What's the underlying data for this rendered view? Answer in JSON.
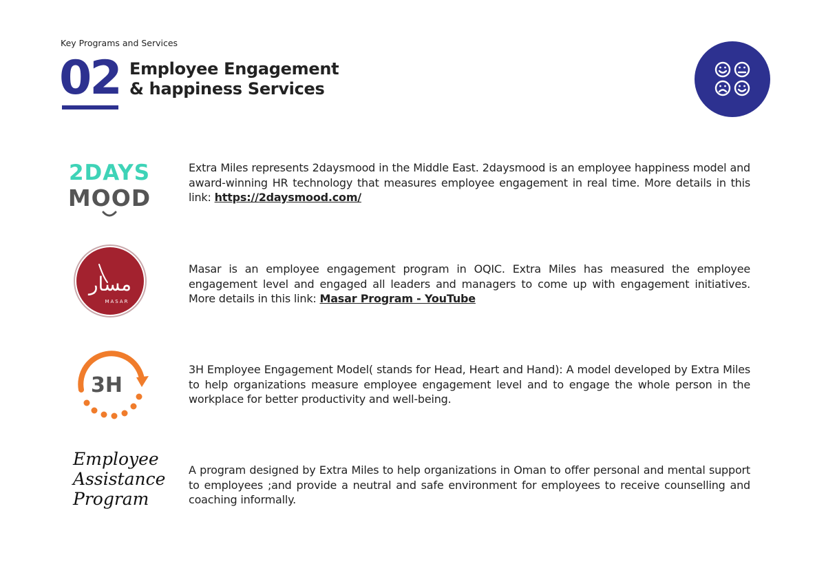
{
  "header": {
    "section_label": "Key Programs and Services",
    "number": "02",
    "title_line1": "Employee Engagement",
    "title_line2": "& happiness Services"
  },
  "colors": {
    "brand_navy": "#2d3190",
    "teal": "#3ed3b7",
    "gray": "#555555",
    "masar_red": "#a3222f",
    "orange": "#f07c2b"
  },
  "items": [
    {
      "logo_line1": "2DAYS",
      "logo_line2": "MOOD",
      "text": "Extra Miles represents 2daysmood in the Middle East. 2daysmood is an employee happiness model and award-winning HR technology that measures employee engagement in real time. More details in this link: ",
      "link_text": "https://2daysmood.com/"
    },
    {
      "logo_text": "MASAR",
      "logo_arabic": "مسار",
      "text": "Masar is an employee engagement program in OQIC. Extra Miles has measured the employee engagement level and engaged all leaders and managers to come up with engagement initiatives. More details in this link: ",
      "link_text": "Masar Program - YouTube"
    },
    {
      "logo_text": "3H",
      "text": "3H Employee Engagement Model( stands for Head, Heart and Hand): A model developed by Extra Miles to help organizations measure employee engagement level and to engage the whole person in the workplace for better productivity and well-being."
    },
    {
      "logo_line1": "Employee",
      "logo_line2": "Assistance",
      "logo_line3": "Program",
      "text": "A program designed by Extra Miles to help organizations in Oman to offer personal and mental support to employees ;and provide a neutral and safe environment for employees to receive counselling and coaching informally."
    }
  ]
}
